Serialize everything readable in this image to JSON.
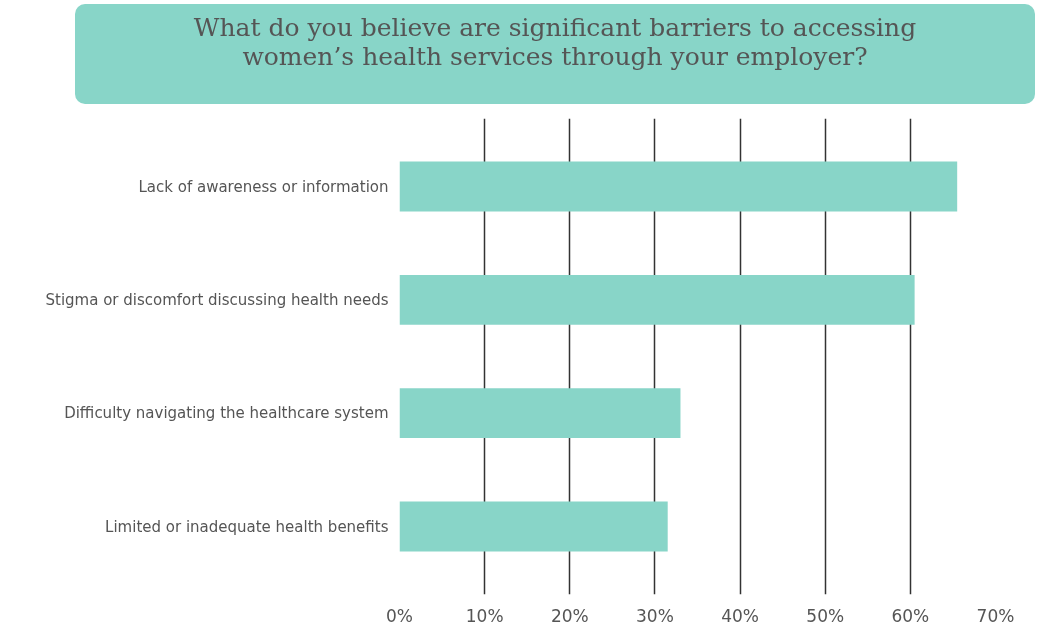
{
  "chart_data": {
    "type": "bar",
    "orientation": "horizontal",
    "title": "What do you believe are significant barriers to accessing\nwomen’s health services through your employer?",
    "categories": [
      "Lack of awareness or information",
      "Stigma or discomfort discussing health needs",
      "Difficulty navigating the healthcare system",
      "Limited or inadequate health benefits"
    ],
    "values": [
      65.5,
      60.5,
      33,
      31.5
    ],
    "color": "#88d5c8",
    "xlim": [
      0,
      70
    ],
    "xticks": [
      {
        "value": 0,
        "label": "0%"
      },
      {
        "value": 10,
        "label": "10%"
      },
      {
        "value": 20,
        "label": "20%"
      },
      {
        "value": 30,
        "label": "30%"
      },
      {
        "value": 40,
        "label": "40%"
      },
      {
        "value": 50,
        "label": "50%"
      },
      {
        "value": 60,
        "label": "60%"
      },
      {
        "value": 70,
        "label": "70%"
      }
    ],
    "grid": "x"
  }
}
